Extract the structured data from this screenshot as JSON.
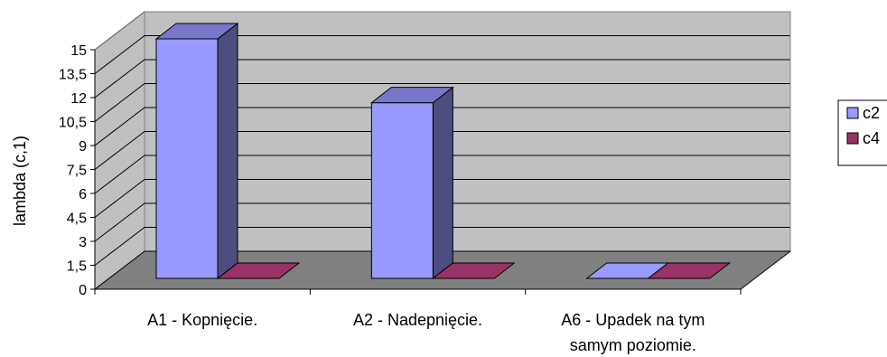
{
  "chart_data": {
    "type": "bar",
    "ylabel": "lambda (c,1)",
    "yticks": [
      "0",
      "1,5",
      "3",
      "4,5",
      "6",
      "7,5",
      "9",
      "10,5",
      "12",
      "13,5",
      "15"
    ],
    "ylim": [
      0,
      15
    ],
    "grid": true,
    "legend_position": "right",
    "categories": [
      [
        "A1 - Kopnięcie."
      ],
      [
        "A2 - Nadepnięcie."
      ],
      [
        "A6 - Upadek na tym",
        "samym poziomie."
      ]
    ],
    "series": [
      {
        "name": "c2",
        "values": [
          15,
          11,
          0
        ],
        "color": "#9999ff",
        "side_color": "#4d4d80",
        "top_color": "#7777cc"
      },
      {
        "name": "c4",
        "values": [
          0,
          0,
          0
        ],
        "color": "#993366",
        "side_color": "#4d1a33",
        "top_color": "#7a2952"
      }
    ]
  }
}
